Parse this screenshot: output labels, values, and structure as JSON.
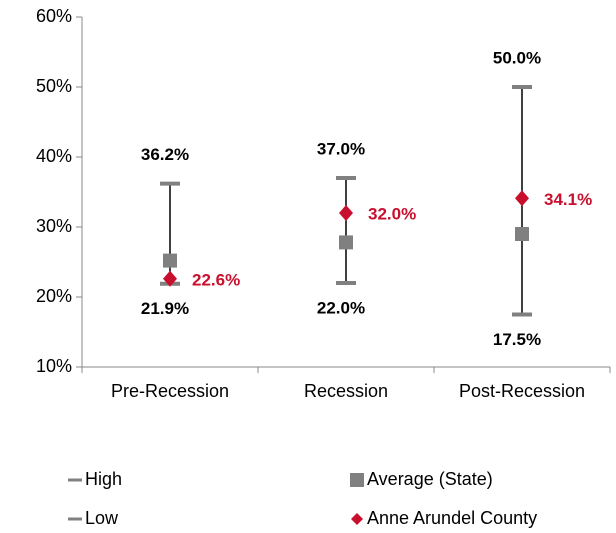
{
  "chart_data": {
    "type": "high-low",
    "categories": [
      "Pre-Recession",
      "Recession",
      "Post-Recession"
    ],
    "ylim": [
      10,
      60
    ],
    "yticks": [
      {
        "value": 10,
        "label": "10%"
      },
      {
        "value": 20,
        "label": "20%"
      },
      {
        "value": 30,
        "label": "30%"
      },
      {
        "value": 40,
        "label": "40%"
      },
      {
        "value": 50,
        "label": "50%"
      },
      {
        "value": 60,
        "label": "60%"
      }
    ],
    "series": [
      {
        "name": "High",
        "color": "#808080",
        "values": [
          36.2,
          37.0,
          50.0
        ],
        "value_labels": [
          "36.2%",
          "37.0%",
          "50.0%"
        ]
      },
      {
        "name": "Low",
        "color": "#808080",
        "values": [
          21.9,
          22.0,
          17.5
        ],
        "value_labels": [
          "21.9%",
          "22.0%",
          "17.5%"
        ]
      },
      {
        "name": "Average (State)",
        "color": "#808080",
        "values": [
          25.2,
          27.8,
          29.0
        ]
      },
      {
        "name": "Anne Arundel County",
        "color": "#c8102e",
        "values": [
          22.6,
          32.0,
          34.1
        ],
        "value_labels": [
          "22.6%",
          "32.0%",
          "34.1%"
        ]
      }
    ],
    "legend": "bottom"
  }
}
